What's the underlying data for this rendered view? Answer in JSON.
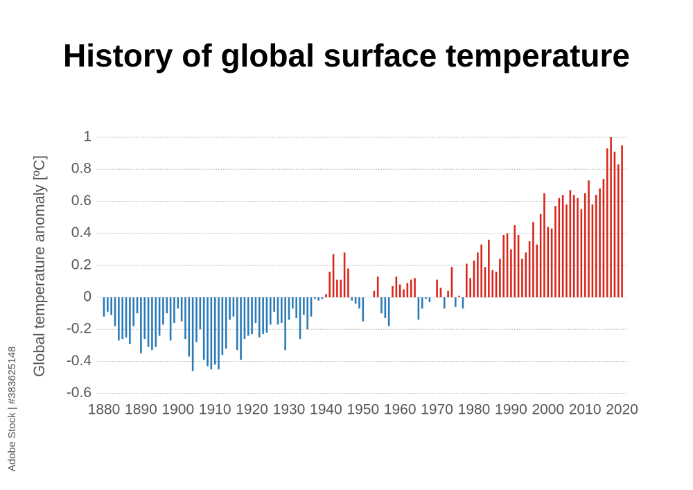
{
  "chart_data": {
    "type": "bar",
    "title": "History of global surface temperature",
    "y_label": "Global temperature anomaly [ºC]",
    "watermark": "Adobe Stock | #383625148",
    "x": [
      1880,
      1881,
      1882,
      1883,
      1884,
      1885,
      1886,
      1887,
      1888,
      1889,
      1890,
      1891,
      1892,
      1893,
      1894,
      1895,
      1896,
      1897,
      1898,
      1899,
      1900,
      1901,
      1902,
      1903,
      1904,
      1905,
      1906,
      1907,
      1908,
      1909,
      1910,
      1911,
      1912,
      1913,
      1914,
      1915,
      1916,
      1917,
      1918,
      1919,
      1920,
      1921,
      1922,
      1923,
      1924,
      1925,
      1926,
      1927,
      1928,
      1929,
      1930,
      1931,
      1932,
      1933,
      1934,
      1935,
      1936,
      1937,
      1938,
      1939,
      1940,
      1941,
      1942,
      1943,
      1944,
      1945,
      1946,
      1947,
      1948,
      1949,
      1950,
      1951,
      1952,
      1953,
      1954,
      1955,
      1956,
      1957,
      1958,
      1959,
      1960,
      1961,
      1962,
      1963,
      1964,
      1965,
      1966,
      1967,
      1968,
      1969,
      1970,
      1971,
      1972,
      1973,
      1974,
      1975,
      1976,
      1977,
      1978,
      1979,
      1980,
      1981,
      1982,
      1983,
      1984,
      1985,
      1986,
      1987,
      1988,
      1989,
      1990,
      1991,
      1992,
      1993,
      1994,
      1995,
      1996,
      1997,
      1998,
      1999,
      2000,
      2001,
      2002,
      2003,
      2004,
      2005,
      2006,
      2007,
      2008,
      2009,
      2010,
      2011,
      2012,
      2013,
      2014,
      2015,
      2016,
      2017,
      2018,
      2019,
      2020
    ],
    "values": [
      -0.12,
      -0.09,
      -0.11,
      -0.18,
      -0.27,
      -0.26,
      -0.25,
      -0.29,
      -0.18,
      -0.1,
      -0.35,
      -0.26,
      -0.31,
      -0.33,
      -0.31,
      -0.24,
      -0.17,
      -0.1,
      -0.27,
      -0.16,
      -0.07,
      -0.15,
      -0.26,
      -0.37,
      -0.46,
      -0.28,
      -0.2,
      -0.39,
      -0.43,
      -0.45,
      -0.42,
      -0.45,
      -0.36,
      -0.32,
      -0.14,
      -0.12,
      -0.33,
      -0.39,
      -0.26,
      -0.24,
      -0.23,
      -0.16,
      -0.25,
      -0.23,
      -0.22,
      -0.17,
      -0.09,
      -0.17,
      -0.16,
      -0.33,
      -0.14,
      -0.07,
      -0.13,
      -0.26,
      -0.11,
      -0.2,
      -0.12,
      -0.01,
      -0.02,
      -0.01,
      0.02,
      0.16,
      0.27,
      0.11,
      0.11,
      0.28,
      0.18,
      -0.02,
      -0.04,
      -0.07,
      -0.15,
      0.0,
      0.0,
      0.04,
      0.13,
      -0.1,
      -0.13,
      -0.18,
      0.07,
      0.13,
      0.08,
      0.05,
      0.09,
      0.11,
      0.12,
      -0.14,
      -0.07,
      -0.01,
      -0.03,
      0.0,
      0.11,
      0.06,
      -0.07,
      0.04,
      0.19,
      -0.06,
      0.01,
      -0.07,
      0.21,
      0.12,
      0.23,
      0.28,
      0.33,
      0.19,
      0.36,
      0.17,
      0.16,
      0.24,
      0.39,
      0.4,
      0.3,
      0.45,
      0.39,
      0.24,
      0.28,
      0.35,
      0.47,
      0.33,
      0.52,
      0.65,
      0.44,
      0.43,
      0.57,
      0.62,
      0.64,
      0.58,
      0.67,
      0.64,
      0.62,
      0.55,
      0.65,
      0.73,
      0.58,
      0.64,
      0.68,
      0.74,
      0.93,
      1.0,
      0.91,
      0.83,
      0.95
    ],
    "positive_color": "#d9261c",
    "negative_color": "#2a7ab7",
    "xlim": [
      1880,
      2020
    ],
    "xticks": [
      1880,
      1890,
      1900,
      1910,
      1920,
      1930,
      1940,
      1950,
      1960,
      1970,
      1980,
      1990,
      2000,
      2010,
      2020
    ],
    "ylim": [
      -0.6,
      1
    ],
    "yticks": [
      -0.6,
      -0.4,
      -0.2,
      0,
      0.2,
      0.4,
      0.6,
      0.8,
      1
    ],
    "grid": true
  }
}
